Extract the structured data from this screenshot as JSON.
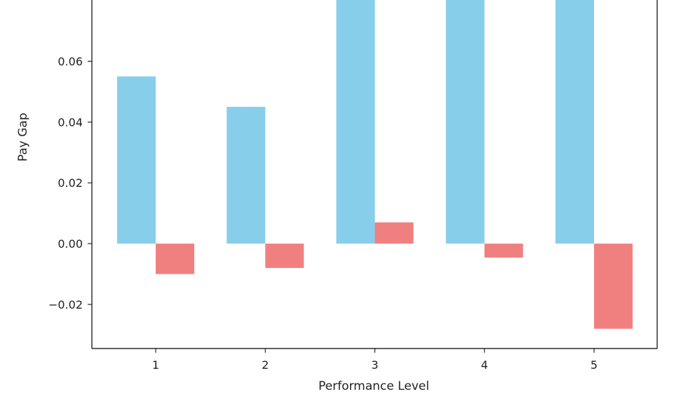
{
  "chart_data": {
    "type": "bar",
    "title": "",
    "xlabel": "Performance Level",
    "ylabel": "Pay Gap",
    "categories": [
      "1",
      "2",
      "3",
      "4",
      "5"
    ],
    "series": [
      {
        "color": "#87ceeb",
        "values": [
          0.055,
          0.045,
          0.0826,
          0.0826,
          0.0826
        ]
      },
      {
        "color": "#f08080",
        "values": [
          -0.01,
          -0.008,
          0.007,
          -0.0046,
          -0.028
        ]
      }
    ],
    "ylim": [
      -0.0345,
      0.0806
    ],
    "yticks": [
      {
        "value": -0.02,
        "label": "−0.02"
      },
      {
        "value": 0.0,
        "label": "0.00"
      },
      {
        "value": 0.02,
        "label": "0.02"
      },
      {
        "value": 0.04,
        "label": "0.04"
      },
      {
        "value": 0.06,
        "label": "0.06"
      }
    ],
    "grid": false,
    "legend": "none"
  }
}
